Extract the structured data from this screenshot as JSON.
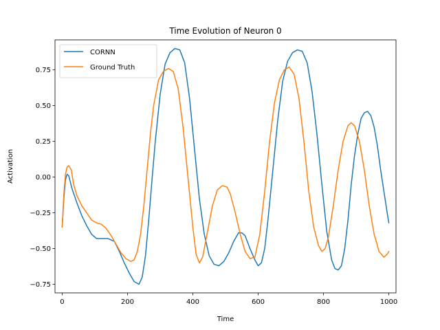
{
  "chart_data": {
    "type": "line",
    "title": "Time Evolution of Neuron 0",
    "xlabel": "Time",
    "ylabel": "Activation",
    "xlim": [
      -22,
      1022
    ],
    "ylim": [
      -0.81,
      0.96
    ],
    "xticks": [
      0,
      200,
      400,
      600,
      800,
      1000
    ],
    "xtick_labels": [
      "0",
      "200",
      "400",
      "600",
      "800",
      "1000"
    ],
    "yticks": [
      -0.75,
      -0.5,
      -0.25,
      0.0,
      0.25,
      0.5,
      0.75
    ],
    "ytick_labels": [
      "−0.75",
      "−0.50",
      "−0.25",
      "0.00",
      "0.25",
      "0.50",
      "0.75"
    ],
    "grid": false,
    "legend_position": "top-left",
    "series": [
      {
        "name": "CORNN",
        "color": "#1f77b4",
        "points": [
          [
            0,
            -0.35
          ],
          [
            5,
            -0.15
          ],
          [
            10,
            -0.02
          ],
          [
            15,
            0.02
          ],
          [
            20,
            0.01
          ],
          [
            30,
            -0.08
          ],
          [
            45,
            -0.18
          ],
          [
            60,
            -0.27
          ],
          [
            75,
            -0.34
          ],
          [
            90,
            -0.4
          ],
          [
            105,
            -0.43
          ],
          [
            120,
            -0.43
          ],
          [
            140,
            -0.43
          ],
          [
            160,
            -0.45
          ],
          [
            175,
            -0.52
          ],
          [
            190,
            -0.6
          ],
          [
            205,
            -0.67
          ],
          [
            220,
            -0.73
          ],
          [
            235,
            -0.75
          ],
          [
            245,
            -0.7
          ],
          [
            255,
            -0.55
          ],
          [
            265,
            -0.3
          ],
          [
            275,
            -0.02
          ],
          [
            285,
            0.25
          ],
          [
            300,
            0.58
          ],
          [
            315,
            0.79
          ],
          [
            330,
            0.87
          ],
          [
            345,
            0.9
          ],
          [
            360,
            0.89
          ],
          [
            375,
            0.8
          ],
          [
            390,
            0.55
          ],
          [
            405,
            0.2
          ],
          [
            420,
            -0.15
          ],
          [
            435,
            -0.4
          ],
          [
            450,
            -0.55
          ],
          [
            465,
            -0.61
          ],
          [
            480,
            -0.62
          ],
          [
            495,
            -0.59
          ],
          [
            510,
            -0.53
          ],
          [
            525,
            -0.45
          ],
          [
            540,
            -0.39
          ],
          [
            550,
            -0.39
          ],
          [
            560,
            -0.41
          ],
          [
            575,
            -0.5
          ],
          [
            590,
            -0.58
          ],
          [
            600,
            -0.62
          ],
          [
            610,
            -0.6
          ],
          [
            620,
            -0.5
          ],
          [
            630,
            -0.3
          ],
          [
            645,
            0.05
          ],
          [
            660,
            0.4
          ],
          [
            675,
            0.67
          ],
          [
            690,
            0.81
          ],
          [
            705,
            0.87
          ],
          [
            720,
            0.89
          ],
          [
            735,
            0.88
          ],
          [
            750,
            0.8
          ],
          [
            765,
            0.6
          ],
          [
            780,
            0.3
          ],
          [
            795,
            -0.05
          ],
          [
            810,
            -0.38
          ],
          [
            825,
            -0.58
          ],
          [
            835,
            -0.64
          ],
          [
            845,
            -0.65
          ],
          [
            855,
            -0.62
          ],
          [
            865,
            -0.5
          ],
          [
            875,
            -0.3
          ],
          [
            885,
            -0.05
          ],
          [
            895,
            0.15
          ],
          [
            905,
            0.3
          ],
          [
            915,
            0.41
          ],
          [
            925,
            0.45
          ],
          [
            935,
            0.46
          ],
          [
            945,
            0.43
          ],
          [
            955,
            0.35
          ],
          [
            965,
            0.22
          ],
          [
            975,
            0.05
          ],
          [
            985,
            -0.1
          ],
          [
            995,
            -0.25
          ],
          [
            1000,
            -0.32
          ]
        ]
      },
      {
        "name": "Ground Truth",
        "color": "#ff7f0e",
        "points": [
          [
            0,
            -0.35
          ],
          [
            5,
            -0.12
          ],
          [
            10,
            0.02
          ],
          [
            15,
            0.07
          ],
          [
            20,
            0.08
          ],
          [
            28,
            0.05
          ],
          [
            35,
            -0.05
          ],
          [
            45,
            -0.13
          ],
          [
            60,
            -0.2
          ],
          [
            75,
            -0.25
          ],
          [
            90,
            -0.3
          ],
          [
            105,
            -0.32
          ],
          [
            120,
            -0.33
          ],
          [
            135,
            -0.36
          ],
          [
            150,
            -0.41
          ],
          [
            165,
            -0.47
          ],
          [
            180,
            -0.53
          ],
          [
            195,
            -0.57
          ],
          [
            210,
            -0.59
          ],
          [
            220,
            -0.58
          ],
          [
            230,
            -0.52
          ],
          [
            240,
            -0.4
          ],
          [
            250,
            -0.2
          ],
          [
            260,
            0.05
          ],
          [
            270,
            0.3
          ],
          [
            280,
            0.5
          ],
          [
            295,
            0.68
          ],
          [
            310,
            0.74
          ],
          [
            325,
            0.76
          ],
          [
            340,
            0.74
          ],
          [
            355,
            0.62
          ],
          [
            370,
            0.35
          ],
          [
            385,
            0.0
          ],
          [
            400,
            -0.35
          ],
          [
            410,
            -0.54
          ],
          [
            420,
            -0.6
          ],
          [
            430,
            -0.56
          ],
          [
            445,
            -0.38
          ],
          [
            460,
            -0.2
          ],
          [
            475,
            -0.09
          ],
          [
            490,
            -0.06
          ],
          [
            505,
            -0.07
          ],
          [
            515,
            -0.12
          ],
          [
            530,
            -0.25
          ],
          [
            545,
            -0.4
          ],
          [
            560,
            -0.52
          ],
          [
            575,
            -0.57
          ],
          [
            590,
            -0.56
          ],
          [
            605,
            -0.4
          ],
          [
            620,
            -0.1
          ],
          [
            635,
            0.25
          ],
          [
            650,
            0.52
          ],
          [
            665,
            0.68
          ],
          [
            680,
            0.75
          ],
          [
            695,
            0.77
          ],
          [
            710,
            0.72
          ],
          [
            725,
            0.55
          ],
          [
            740,
            0.25
          ],
          [
            755,
            -0.1
          ],
          [
            770,
            -0.35
          ],
          [
            785,
            -0.48
          ],
          [
            795,
            -0.52
          ],
          [
            805,
            -0.5
          ],
          [
            815,
            -0.42
          ],
          [
            830,
            -0.2
          ],
          [
            845,
            0.05
          ],
          [
            860,
            0.25
          ],
          [
            875,
            0.36
          ],
          [
            885,
            0.38
          ],
          [
            895,
            0.36
          ],
          [
            910,
            0.25
          ],
          [
            925,
            0.05
          ],
          [
            940,
            -0.2
          ],
          [
            955,
            -0.4
          ],
          [
            970,
            -0.52
          ],
          [
            985,
            -0.56
          ],
          [
            995,
            -0.54
          ],
          [
            1000,
            -0.52
          ]
        ]
      }
    ]
  }
}
